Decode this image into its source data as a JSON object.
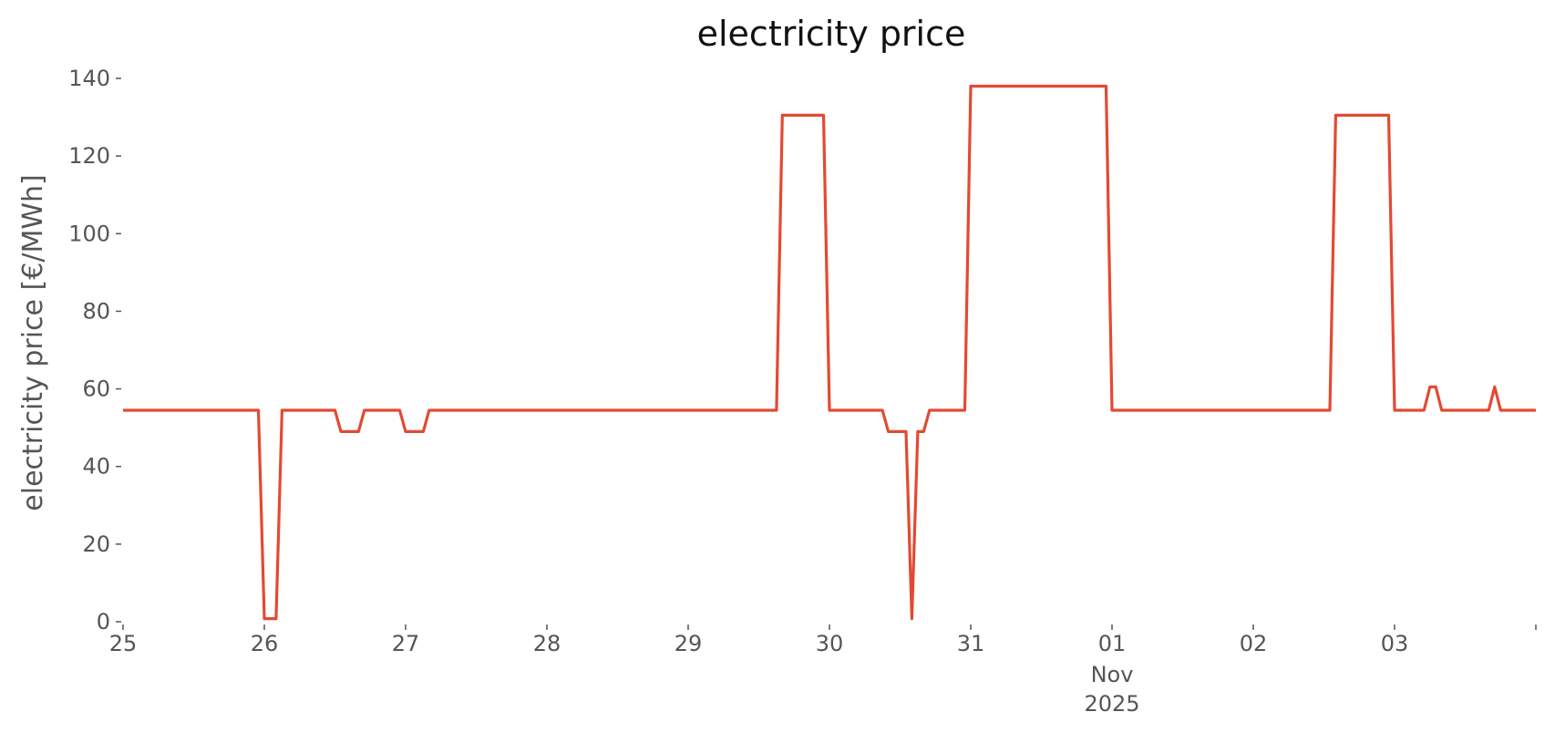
{
  "chart_data": {
    "type": "line",
    "title": "electricity price",
    "xlabel": "",
    "ylabel": "electricity price [€/MWh]",
    "ylim": [
      0,
      140
    ],
    "xlim": [
      "2025-10-25T00:00",
      "2025-11-04T00:00"
    ],
    "grid": false,
    "legend": "none",
    "line_color": "#E24A33",
    "y_ticks": [
      "0",
      "20",
      "40",
      "60",
      "80",
      "100",
      "120",
      "140"
    ],
    "x_ticks": [
      {
        "date": "2025-10-25",
        "label": "25"
      },
      {
        "date": "2025-10-26",
        "label": "26"
      },
      {
        "date": "2025-10-27",
        "label": "27"
      },
      {
        "date": "2025-10-28",
        "label": "28"
      },
      {
        "date": "2025-10-29",
        "label": "29"
      },
      {
        "date": "2025-10-30",
        "label": "30"
      },
      {
        "date": "2025-10-31",
        "label": "31"
      },
      {
        "date": "2025-11-01",
        "label": "01",
        "sublabel_1": "Nov",
        "sublabel_2": "2025"
      },
      {
        "date": "2025-11-02",
        "label": "02"
      },
      {
        "date": "2025-11-03",
        "label": "03"
      },
      {
        "date": "2025-11-04",
        "label": ""
      }
    ],
    "series": [
      {
        "x": [
          "2025-10-25T00:00",
          "2025-10-25T23:00",
          "2025-10-26T00:00",
          "2025-10-26T02:00",
          "2025-10-26T03:00",
          "2025-10-26T12:00",
          "2025-10-26T13:00",
          "2025-10-26T16:00",
          "2025-10-26T17:00",
          "2025-10-26T23:00",
          "2025-10-27T00:00",
          "2025-10-27T03:00",
          "2025-10-27T04:00",
          "2025-10-29T15:00",
          "2025-10-29T16:00",
          "2025-10-29T23:00",
          "2025-10-30T00:00",
          "2025-10-30T09:00",
          "2025-10-30T10:00",
          "2025-10-30T13:00",
          "2025-10-30T14:00",
          "2025-10-30T15:00",
          "2025-10-30T16:00",
          "2025-10-30T17:00",
          "2025-10-30T23:00",
          "2025-10-31T00:00",
          "2025-10-31T23:00",
          "2025-11-01T00:00",
          "2025-11-02T13:00",
          "2025-11-02T14:00",
          "2025-11-02T23:00",
          "2025-11-03T00:00",
          "2025-11-03T05:00",
          "2025-11-03T06:00",
          "2025-11-03T07:00",
          "2025-11-03T08:00",
          "2025-11-03T16:00",
          "2025-11-03T17:00",
          "2025-11-03T18:00",
          "2025-11-04T00:00"
        ],
        "values": [
          54.5,
          54.5,
          0.8,
          0.8,
          54.5,
          54.5,
          49,
          49,
          54.5,
          54.5,
          49,
          49,
          54.5,
          54.5,
          130.5,
          130.5,
          54.5,
          54.5,
          49,
          49,
          0.8,
          49,
          49,
          54.5,
          54.5,
          138,
          138,
          54.5,
          54.5,
          130.5,
          130.5,
          54.5,
          54.5,
          60.5,
          60.5,
          54.5,
          54.5,
          60.5,
          54.5,
          54.5
        ]
      }
    ]
  }
}
